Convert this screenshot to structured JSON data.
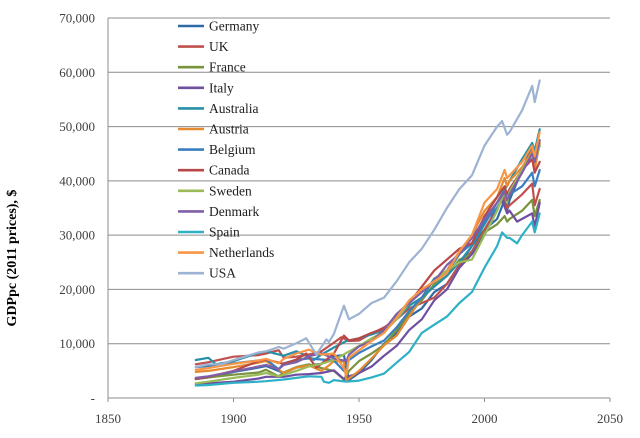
{
  "chart_data": {
    "type": "line",
    "title": "",
    "xlabel": "",
    "ylabel": "GDPpc (2011 prices), $",
    "xlim": [
      1850,
      2050
    ],
    "ylim": [
      0,
      70000
    ],
    "x_ticks": [
      "1850",
      "1900",
      "1950",
      "2000",
      "2050"
    ],
    "y_ticks": [
      "-",
      "10,000",
      "20,000",
      "30,000",
      "40,000",
      "50,000",
      "60,000",
      "70,000"
    ],
    "grid": "horizontal",
    "legend_position": "top-left",
    "series": [
      {
        "name": "Germany",
        "color": "#2e6aa8",
        "x": [
          1885,
          1890,
          1900,
          1910,
          1913,
          1920,
          1925,
          1930,
          1935,
          1938,
          1940,
          1944,
          1946,
          1950,
          1955,
          1960,
          1965,
          1970,
          1975,
          1980,
          1985,
          1990,
          1995,
          2000,
          2005,
          2008,
          2009,
          2010,
          2015,
          2019,
          2020,
          2022
        ],
        "y": [
          3500,
          3800,
          4800,
          5600,
          5900,
          4600,
          5600,
          6000,
          6300,
          7400,
          7700,
          7900,
          3300,
          4600,
          7000,
          10000,
          12000,
          15000,
          16500,
          19500,
          21000,
          24500,
          28000,
          31000,
          33000,
          36500,
          34500,
          36500,
          42000,
          46500,
          44500,
          46500
        ]
      },
      {
        "name": "UK",
        "color": "#c0504d",
        "x": [
          1885,
          1890,
          1900,
          1910,
          1913,
          1918,
          1920,
          1925,
          1930,
          1935,
          1940,
          1943,
          1946,
          1950,
          1955,
          1960,
          1965,
          1970,
          1975,
          1980,
          1985,
          1990,
          1995,
          2000,
          2005,
          2008,
          2009,
          2010,
          2015,
          2019,
          2020,
          2022
        ],
        "y": [
          6200,
          6600,
          7600,
          7900,
          8200,
          8800,
          7400,
          7600,
          8000,
          8600,
          10200,
          11200,
          10500,
          10600,
          11900,
          13000,
          14500,
          16500,
          17500,
          18500,
          21000,
          24500,
          27000,
          31000,
          35000,
          37000,
          35000,
          35500,
          37500,
          39500,
          35500,
          38500
        ]
      },
      {
        "name": "France",
        "color": "#77933c",
        "x": [
          1885,
          1890,
          1900,
          1910,
          1913,
          1918,
          1920,
          1925,
          1930,
          1935,
          1940,
          1944,
          1946,
          1950,
          1955,
          1960,
          1965,
          1970,
          1975,
          1980,
          1985,
          1990,
          1995,
          2000,
          2005,
          2008,
          2009,
          2010,
          2015,
          2019,
          2020,
          2022
        ],
        "y": [
          3500,
          3800,
          4300,
          4700,
          5200,
          4000,
          4700,
          5700,
          6200,
          5500,
          5000,
          3400,
          5000,
          6800,
          8200,
          9800,
          12500,
          15500,
          18000,
          21000,
          22500,
          25500,
          26500,
          30500,
          32000,
          33500,
          32500,
          33000,
          34500,
          36500,
          33500,
          36500
        ]
      },
      {
        "name": "Italy",
        "color": "#6f4fa0",
        "x": [
          1885,
          1890,
          1900,
          1910,
          1913,
          1920,
          1925,
          1930,
          1935,
          1940,
          1945,
          1946,
          1950,
          1955,
          1960,
          1965,
          1970,
          1975,
          1980,
          1985,
          1990,
          1995,
          2000,
          2005,
          2007,
          2009,
          2010,
          2013,
          2015,
          2019,
          2020,
          2022
        ],
        "y": [
          2600,
          2700,
          3000,
          3600,
          3900,
          3900,
          4300,
          4400,
          4600,
          5100,
          3100,
          4000,
          4600,
          5800,
          7800,
          9600,
          12500,
          14500,
          18000,
          20000,
          24000,
          26500,
          30000,
          35000,
          36500,
          34000,
          34500,
          32500,
          33000,
          34000,
          31500,
          36000
        ]
      },
      {
        "name": "Australia",
        "color": "#2790a8",
        "x": [
          1885,
          1890,
          1893,
          1900,
          1910,
          1913,
          1920,
          1925,
          1930,
          1932,
          1935,
          1940,
          1945,
          1950,
          1955,
          1960,
          1965,
          1970,
          1975,
          1980,
          1985,
          1990,
          1995,
          2000,
          2005,
          2010,
          2015,
          2019,
          2020,
          2022
        ],
        "y": [
          7000,
          7400,
          6200,
          6800,
          8300,
          8600,
          7800,
          8600,
          7600,
          7000,
          8000,
          9300,
          10500,
          11000,
          11700,
          12500,
          14500,
          17000,
          18500,
          20500,
          22500,
          25000,
          28000,
          32000,
          36000,
          40000,
          44000,
          47000,
          45500,
          49500
        ]
      },
      {
        "name": "Austria",
        "color": "#e58a2f",
        "x": [
          1885,
          1890,
          1900,
          1910,
          1913,
          1920,
          1925,
          1930,
          1935,
          1938,
          1940,
          1944,
          1945,
          1946,
          1950,
          1955,
          1960,
          1965,
          1970,
          1975,
          1980,
          1985,
          1990,
          1995,
          2000,
          2005,
          2008,
          2009,
          2010,
          2015,
          2019,
          2020,
          2022
        ],
        "y": [
          4800,
          5000,
          5700,
          6500,
          6800,
          4600,
          5600,
          6000,
          5000,
          6000,
          6800,
          6700,
          3300,
          3600,
          5000,
          7300,
          9700,
          11500,
          15000,
          18500,
          22000,
          23500,
          27000,
          30000,
          34500,
          37000,
          40500,
          39000,
          40000,
          42500,
          45500,
          42000,
          47000
        ]
      },
      {
        "name": "Belgium",
        "color": "#3a7fc0",
        "x": [
          1885,
          1890,
          1900,
          1910,
          1913,
          1918,
          1920,
          1925,
          1930,
          1935,
          1940,
          1944,
          1946,
          1950,
          1955,
          1960,
          1965,
          1970,
          1975,
          1980,
          1985,
          1990,
          1995,
          2000,
          2005,
          2008,
          2009,
          2010,
          2015,
          2019,
          2020,
          2022
        ],
        "y": [
          5700,
          5900,
          6400,
          6900,
          7100,
          5300,
          6400,
          7000,
          7300,
          7100,
          6900,
          5000,
          7000,
          8300,
          9500,
          10600,
          13000,
          16000,
          18500,
          22000,
          23000,
          26500,
          28500,
          32500,
          35000,
          37500,
          36500,
          37500,
          39000,
          41500,
          39000,
          42000
        ]
      },
      {
        "name": "Canada",
        "color": "#b84747",
        "x": [
          1885,
          1890,
          1900,
          1910,
          1913,
          1920,
          1925,
          1929,
          1933,
          1935,
          1940,
          1944,
          1946,
          1950,
          1955,
          1960,
          1965,
          1970,
          1975,
          1980,
          1985,
          1990,
          1995,
          2000,
          2005,
          2008,
          2009,
          2010,
          2015,
          2019,
          2020,
          2022
        ],
        "y": [
          3500,
          3900,
          5000,
          6800,
          7100,
          6300,
          7100,
          8200,
          5600,
          6300,
          8200,
          11500,
          10600,
          11000,
          12000,
          12800,
          15000,
          17500,
          20500,
          23500,
          25500,
          27500,
          28500,
          33500,
          37000,
          39000,
          37500,
          38500,
          42000,
          44000,
          41500,
          43500
        ]
      },
      {
        "name": "Sweden",
        "color": "#9bbb59",
        "x": [
          1885,
          1890,
          1900,
          1910,
          1913,
          1918,
          1920,
          1925,
          1930,
          1935,
          1940,
          1945,
          1950,
          1955,
          1960,
          1965,
          1970,
          1975,
          1980,
          1985,
          1990,
          1995,
          2000,
          2005,
          2008,
          2009,
          2010,
          2015,
          2019,
          2020,
          2022
        ],
        "y": [
          2700,
          3000,
          3700,
          4300,
          4600,
          4000,
          4300,
          5000,
          5800,
          6300,
          7000,
          8300,
          9600,
          11000,
          12200,
          14500,
          17500,
          19500,
          21500,
          23500,
          25000,
          25500,
          30000,
          34500,
          38000,
          36000,
          38000,
          42000,
          45000,
          43500,
          46500
        ]
      },
      {
        "name": "Denmark",
        "color": "#7f5fa8",
        "x": [
          1885,
          1890,
          1900,
          1910,
          1913,
          1918,
          1920,
          1925,
          1930,
          1935,
          1940,
          1945,
          1946,
          1950,
          1955,
          1960,
          1965,
          1970,
          1975,
          1980,
          1985,
          1990,
          1995,
          2000,
          2005,
          2008,
          2009,
          2010,
          2015,
          2019,
          2020,
          2022
        ],
        "y": [
          3700,
          4000,
          4900,
          5800,
          6100,
          5300,
          6100,
          6600,
          7700,
          8200,
          7300,
          6800,
          8000,
          9500,
          10500,
          12500,
          15500,
          17500,
          19500,
          21500,
          24500,
          26500,
          29500,
          33000,
          36000,
          38000,
          36500,
          37500,
          41500,
          45000,
          43500,
          47500
        ]
      },
      {
        "name": "Spain",
        "color": "#2eb0c6",
        "x": [
          1885,
          1890,
          1900,
          1910,
          1913,
          1920,
          1925,
          1930,
          1935,
          1936,
          1938,
          1940,
          1945,
          1950,
          1955,
          1960,
          1965,
          1970,
          1975,
          1980,
          1985,
          1990,
          1995,
          2000,
          2005,
          2007,
          2009,
          2010,
          2013,
          2015,
          2019,
          2020,
          2022
        ],
        "y": [
          2300,
          2400,
          2800,
          3000,
          3100,
          3400,
          3700,
          4000,
          3900,
          3000,
          2800,
          3300,
          3000,
          3200,
          3800,
          4500,
          6500,
          8500,
          12000,
          13500,
          15000,
          17500,
          19500,
          24000,
          28000,
          30500,
          29500,
          29500,
          28500,
          30000,
          32500,
          30500,
          34000
        ]
      },
      {
        "name": "Netherlands",
        "color": "#f79646",
        "x": [
          1885,
          1890,
          1900,
          1910,
          1913,
          1918,
          1920,
          1925,
          1930,
          1935,
          1940,
          1944,
          1945,
          1946,
          1950,
          1955,
          1960,
          1965,
          1970,
          1975,
          1980,
          1985,
          1990,
          1995,
          2000,
          2005,
          2008,
          2009,
          2010,
          2015,
          2019,
          2020,
          2022
        ],
        "y": [
          5200,
          5500,
          6300,
          6900,
          7200,
          6400,
          7200,
          8200,
          8900,
          8000,
          8200,
          5500,
          4300,
          7400,
          8800,
          10500,
          12000,
          14800,
          18000,
          20000,
          21500,
          23000,
          27000,
          30000,
          36000,
          38500,
          42000,
          40500,
          41000,
          43500,
          46500,
          44500,
          49000
        ]
      },
      {
        "name": "USA",
        "color": "#9db3d3",
        "x": [
          1885,
          1890,
          1895,
          1900,
          1905,
          1910,
          1913,
          1918,
          1920,
          1925,
          1929,
          1933,
          1937,
          1938,
          1940,
          1944,
          1946,
          1950,
          1955,
          1960,
          1965,
          1970,
          1975,
          1980,
          1985,
          1990,
          1995,
          2000,
          2005,
          2007,
          2009,
          2010,
          2015,
          2019,
          2020,
          2022
        ],
        "y": [
          5700,
          6200,
          6200,
          7000,
          7700,
          8400,
          8600,
          9400,
          9100,
          10100,
          11000,
          8000,
          10800,
          10300,
          11800,
          17000,
          14500,
          15500,
          17500,
          18500,
          21500,
          25000,
          27500,
          31000,
          35000,
          38500,
          41000,
          46500,
          50000,
          51000,
          48500,
          49000,
          53000,
          57500,
          54500,
          58500
        ]
      }
    ]
  }
}
